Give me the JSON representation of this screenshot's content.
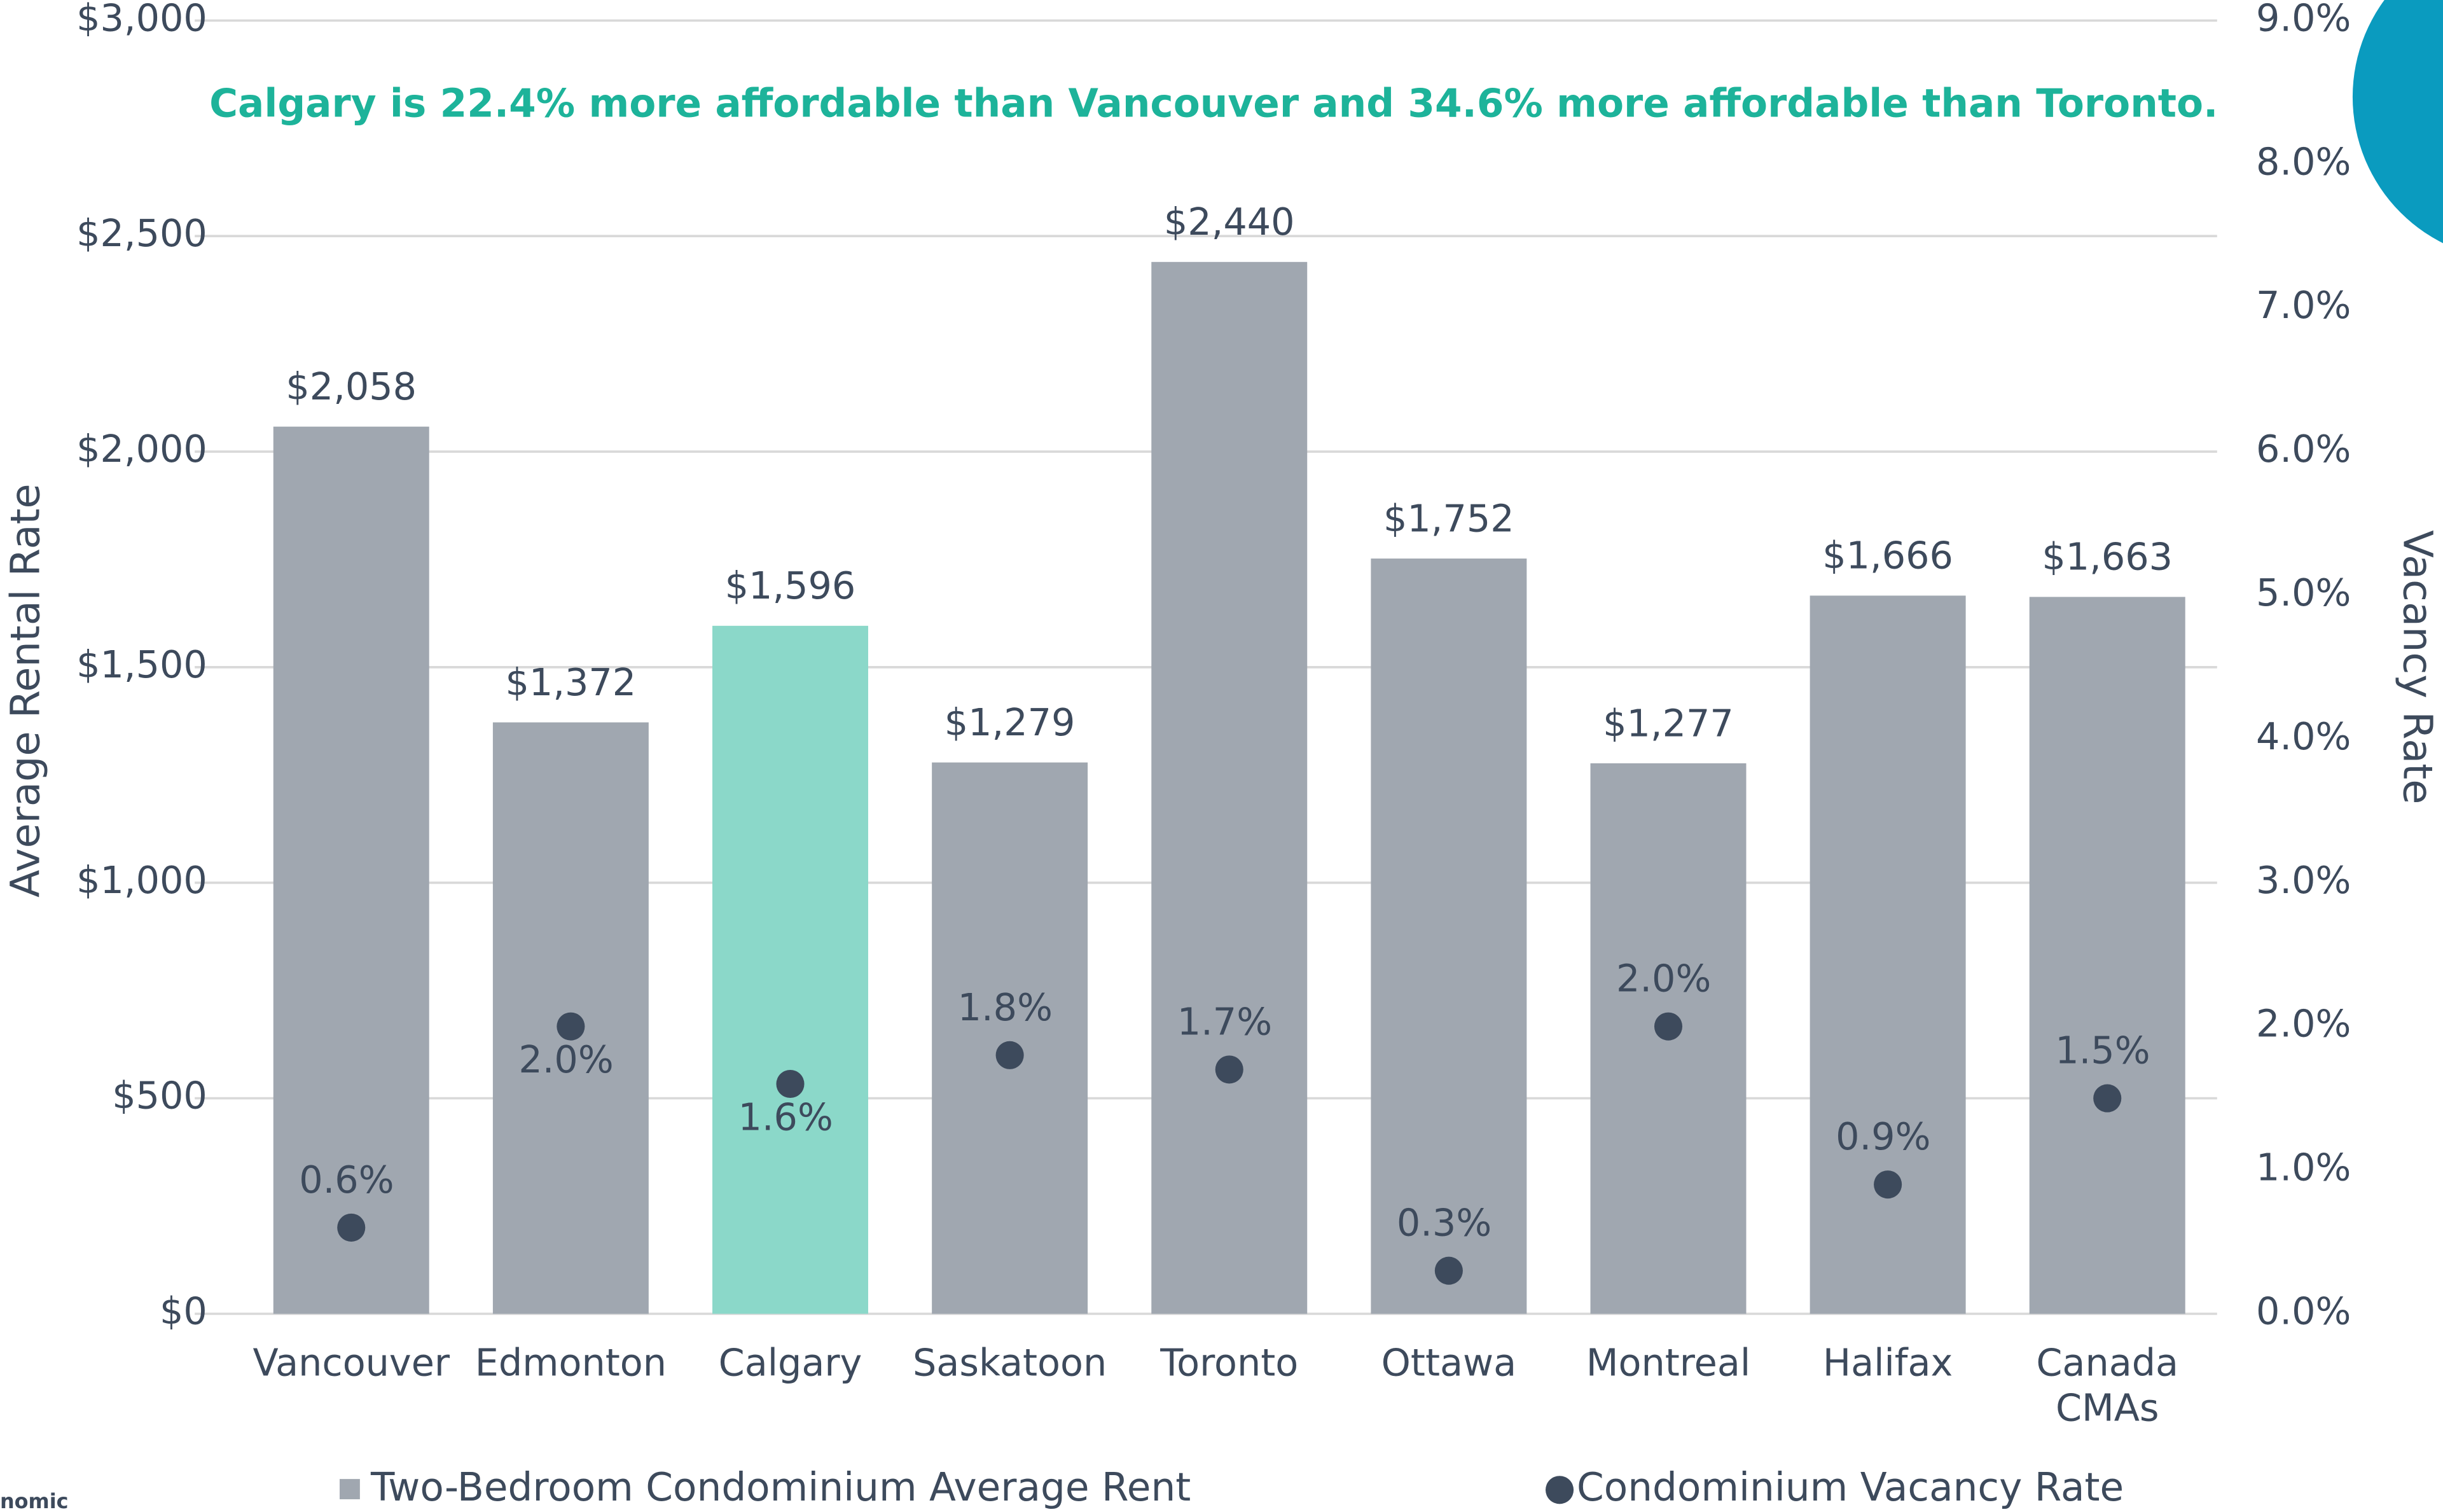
{
  "chart_data": {
    "type": "bar",
    "subtitle": "Calgary is 22.4% more affordable than Vancouver and 34.6% more affordable than Toronto.",
    "y_label": "Average Rental Rate",
    "y2_label": "Vacancy Rate",
    "footer_fragment": "nomic",
    "categories": [
      "Vancouver",
      "Edmonton",
      "Calgary",
      "Saskatoon",
      "Toronto",
      "Ottawa",
      "Montreal",
      "Halifax",
      "Canada CMAs"
    ],
    "series": [
      {
        "name": "Two-Bedroom Condominium Average Rent",
        "type": "bar",
        "color": "#a0a7b0",
        "colors": [
          "#a0a7b0",
          "#a0a7b0",
          "#8bd8c9",
          "#a0a7b0",
          "#a0a7b0",
          "#a0a7b0",
          "#a0a7b0",
          "#a0a7b0",
          "#a0a7b0"
        ],
        "values": [
          2058,
          1372,
          1596,
          1279,
          2440,
          1752,
          1277,
          1666,
          1663
        ],
        "value_labels": [
          "$2,058",
          "$1,372",
          "$1,596",
          "$1,279",
          "$2,440",
          "$1,752",
          "$1,277",
          "$1,666",
          "$1,663"
        ]
      },
      {
        "name": "Condominium Vacancy Rate",
        "type": "scatter",
        "axis": "y2",
        "color": "#3d4a5c",
        "values": [
          0.6,
          2.0,
          1.6,
          1.8,
          1.7,
          0.3,
          2.0,
          0.9,
          1.5
        ],
        "value_labels": [
          "0.6%",
          "2.0%",
          "1.6%",
          "1.8%",
          "1.7%",
          "0.3%",
          "2.0%",
          "0.9%",
          "1.5%"
        ]
      }
    ],
    "ylim": [
      0,
      3000
    ],
    "yticks": [
      {
        "value": 0,
        "label": "$0"
      },
      {
        "value": 500,
        "label": "$500"
      },
      {
        "value": 1000,
        "label": "$1,000"
      },
      {
        "value": 1500,
        "label": "$1,500"
      },
      {
        "value": 2000,
        "label": "$2,000"
      },
      {
        "value": 2500,
        "label": "$2,500"
      },
      {
        "value": 3000,
        "label": "$3,000"
      }
    ],
    "y2lim": [
      0,
      9
    ],
    "y2ticks": [
      {
        "value": 0,
        "label": "0.0%"
      },
      {
        "value": 1,
        "label": "1.0%"
      },
      {
        "value": 2,
        "label": "2.0%"
      },
      {
        "value": 3,
        "label": "3.0%"
      },
      {
        "value": 4,
        "label": "4.0%"
      },
      {
        "value": 5,
        "label": "5.0%"
      },
      {
        "value": 6,
        "label": "6.0%"
      },
      {
        "value": 7,
        "label": "7.0%"
      },
      {
        "value": 8,
        "label": "8.0%"
      },
      {
        "value": 9,
        "label": "9.0%"
      }
    ],
    "grid": true
  }
}
